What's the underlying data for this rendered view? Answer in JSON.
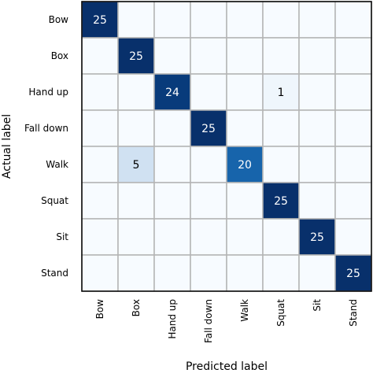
{
  "chart_data": {
    "type": "heatmap",
    "title": "",
    "xlabel": "Predicted label",
    "ylabel": "Actual label",
    "x_categories": [
      "Bow",
      "Box",
      "Hand up",
      "Fall down",
      "Walk",
      "Squat",
      "Sit",
      "Stand"
    ],
    "y_categories": [
      "Bow",
      "Box",
      "Hand up",
      "Fall down",
      "Walk",
      "Squat",
      "Sit",
      "Stand"
    ],
    "matrix": [
      [
        25,
        0,
        0,
        0,
        0,
        0,
        0,
        0
      ],
      [
        0,
        25,
        0,
        0,
        0,
        0,
        0,
        0
      ],
      [
        0,
        0,
        24,
        0,
        0,
        1,
        0,
        0
      ],
      [
        0,
        0,
        0,
        25,
        0,
        0,
        0,
        0
      ],
      [
        0,
        5,
        0,
        0,
        20,
        0,
        0,
        0
      ],
      [
        0,
        0,
        0,
        0,
        0,
        25,
        0,
        0
      ],
      [
        0,
        0,
        0,
        0,
        0,
        0,
        25,
        0
      ],
      [
        0,
        0,
        0,
        0,
        0,
        0,
        0,
        25
      ]
    ],
    "value_range": [
      0,
      25
    ],
    "colormap": "Blues",
    "grid": true
  }
}
